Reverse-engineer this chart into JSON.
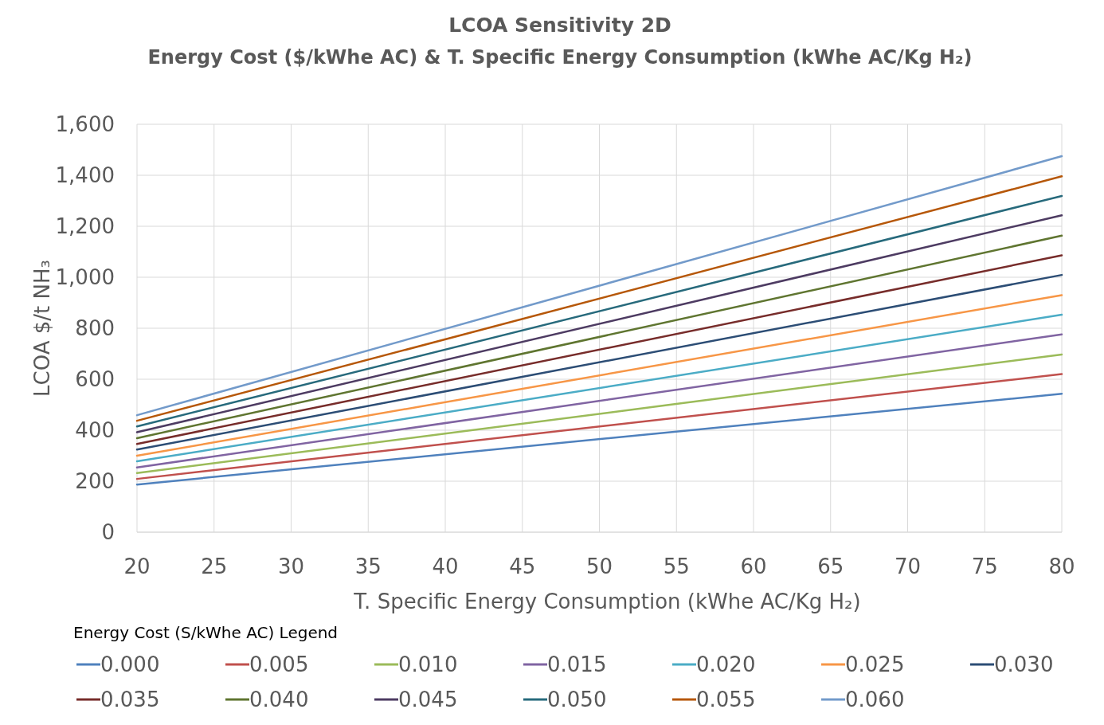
{
  "chart_data": {
    "type": "line",
    "title": "LCOA Sensitivity 2D",
    "subtitle": "Energy Cost ($/kWhe AC) & T. Specific Energy Consumption (kWhe AC/Kg H₂)",
    "xlabel": "T. Specific Energy Consumption (kWhe AC/Kg H₂)",
    "ylabel": "LCOA $/t NH₃",
    "legend_title": "Energy Cost (S/kWhe AC)  Legend",
    "x": [
      20,
      80
    ],
    "xlim": [
      20,
      80
    ],
    "xticks": [
      20,
      25,
      30,
      35,
      40,
      45,
      50,
      55,
      60,
      65,
      70,
      75,
      80
    ],
    "ylim": [
      0,
      1600
    ],
    "yticks": [
      {
        "value": 0,
        "label": "0"
      },
      {
        "value": 200,
        "label": "200"
      },
      {
        "value": 400,
        "label": "400"
      },
      {
        "value": 600,
        "label": "600"
      },
      {
        "value": 800,
        "label": "800"
      },
      {
        "value": 1000,
        "label": "1,000"
      },
      {
        "value": 1200,
        "label": "1,200"
      },
      {
        "value": 1400,
        "label": "1,400"
      },
      {
        "value": 1600,
        "label": "1,600"
      }
    ],
    "grid": true,
    "legend": "bottom",
    "marker": "none",
    "line_style": "solid",
    "series": [
      {
        "name": "0.000",
        "color": "#4f81bd",
        "values": [
          187,
          543
        ]
      },
      {
        "name": "0.005",
        "color": "#c0504d",
        "values": [
          209,
          620
        ]
      },
      {
        "name": "0.010",
        "color": "#9bbb59",
        "values": [
          232,
          697
        ]
      },
      {
        "name": "0.015",
        "color": "#8064a2",
        "values": [
          254,
          776
        ]
      },
      {
        "name": "0.020",
        "color": "#4bacc6",
        "values": [
          278,
          853
        ]
      },
      {
        "name": "0.025",
        "color": "#f79646",
        "values": [
          300,
          930
        ]
      },
      {
        "name": "0.030",
        "color": "#2c4d75",
        "values": [
          324,
          1009
        ]
      },
      {
        "name": "0.035",
        "color": "#772c2a",
        "values": [
          346,
          1086
        ]
      },
      {
        "name": "0.040",
        "color": "#5f7530",
        "values": [
          369,
          1163
        ]
      },
      {
        "name": "0.045",
        "color": "#4d3b62",
        "values": [
          392,
          1243
        ]
      },
      {
        "name": "0.050",
        "color": "#276a7c",
        "values": [
          415,
          1319
        ]
      },
      {
        "name": "0.055",
        "color": "#b65708",
        "values": [
          437,
          1396
        ]
      },
      {
        "name": "0.060",
        "color": "#729aca",
        "values": [
          459,
          1475
        ]
      }
    ]
  }
}
